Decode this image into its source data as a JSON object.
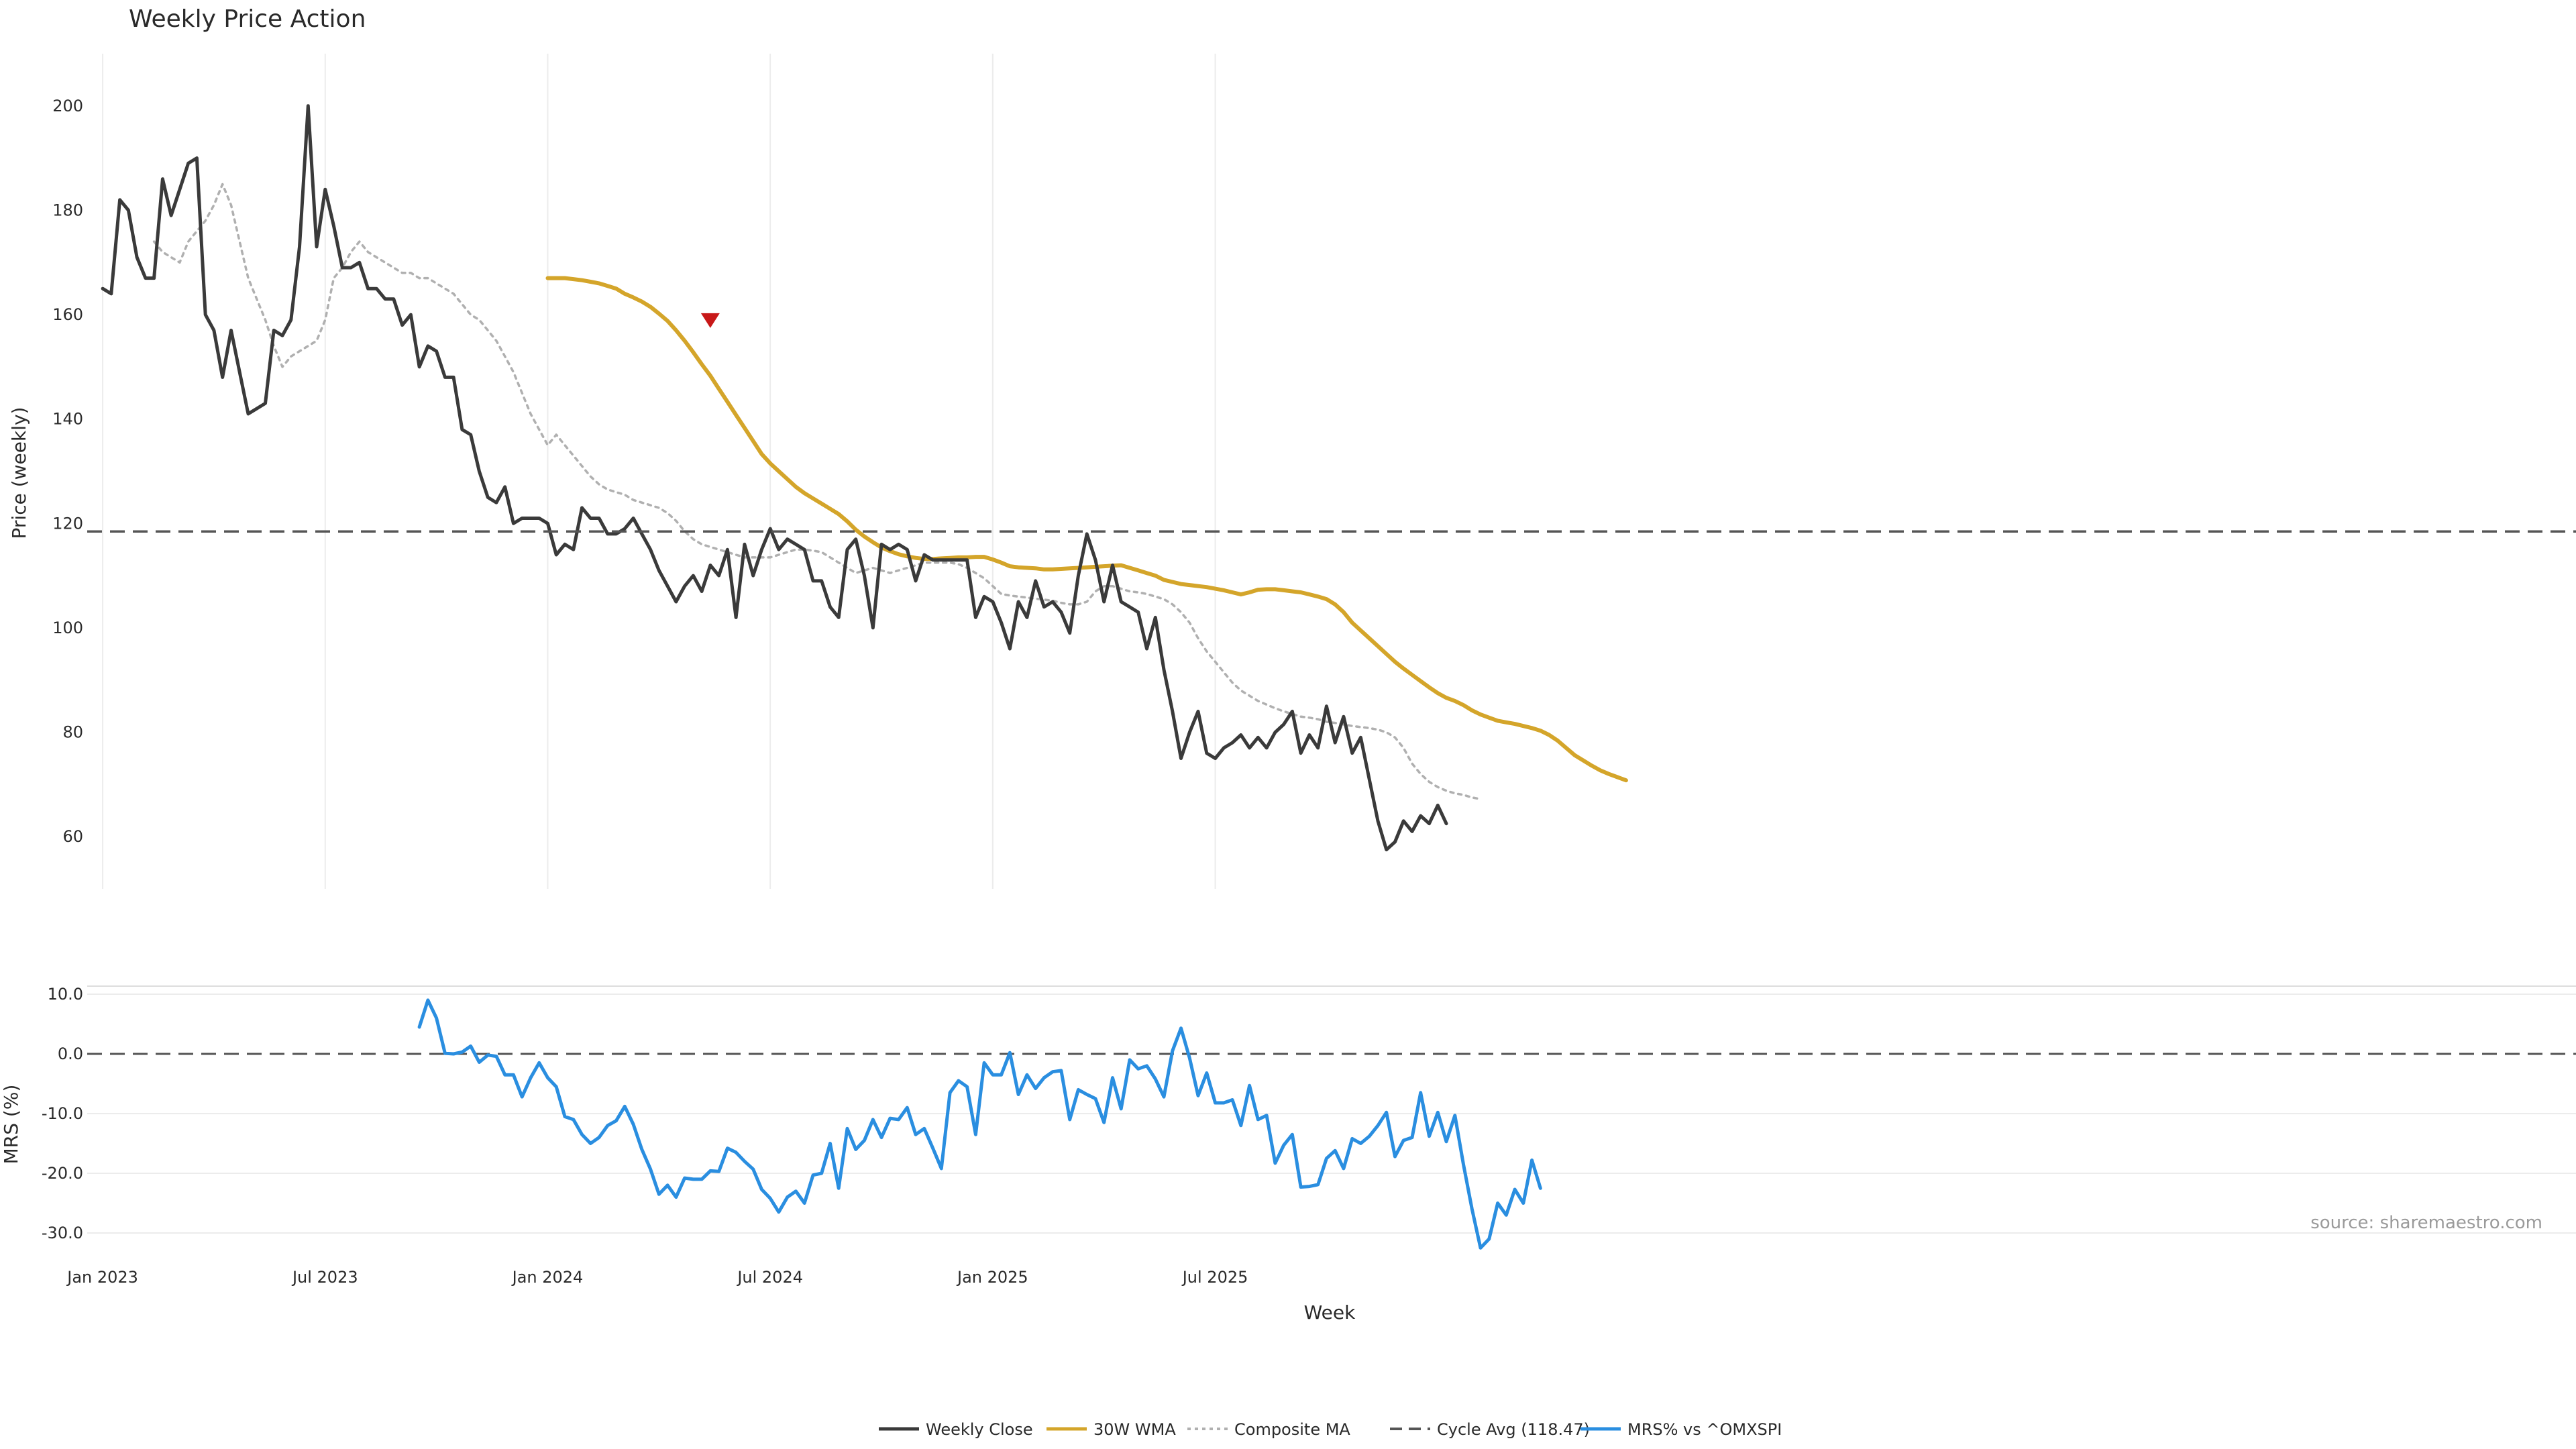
{
  "colors": {
    "close": "#3a3a3a",
    "wma": "#d4a52a",
    "composite": "#b0b0b0",
    "cycle": "#555555",
    "mrs": "#2a8ee0",
    "signal": "#c81818",
    "grid": "#ececec"
  },
  "chart_data": [
    {
      "type": "line",
      "title": "Weekly Price Action",
      "xlabel": "",
      "ylabel": "Price (weekly)",
      "ylim": [
        50,
        210
      ],
      "yticks": [
        "200",
        "180",
        "160",
        "140",
        "120",
        "100",
        "80",
        "60"
      ],
      "x_range": [
        -12,
        289
      ],
      "signal": {
        "name": "Sell signal",
        "x": 71,
        "y": 159
      },
      "series": [
        {
          "name": "Weekly Close",
          "x0": 0,
          "values": [
            165,
            164,
            182,
            180,
            171,
            167,
            167,
            186,
            179,
            184,
            189,
            190,
            160,
            157,
            148,
            157,
            149,
            141,
            142,
            143,
            157,
            156,
            159,
            173,
            200,
            173,
            184,
            177,
            169,
            169,
            170,
            165,
            165,
            163,
            163,
            158,
            160,
            150,
            154,
            153,
            148,
            148,
            138,
            137,
            130,
            125,
            124,
            127,
            120,
            121,
            121,
            121,
            120,
            114,
            116,
            115,
            123,
            121,
            121,
            118,
            118,
            119,
            121,
            118,
            115,
            111,
            108,
            105,
            108,
            110,
            107,
            112,
            110,
            115,
            102,
            116,
            110,
            115,
            119,
            115,
            117,
            116,
            115,
            109,
            109,
            104,
            102,
            115,
            117,
            110,
            100,
            116,
            115,
            116,
            115,
            109,
            114,
            113,
            113,
            113,
            113,
            113,
            102,
            106,
            105,
            101,
            96,
            105,
            102,
            109,
            104,
            105,
            103,
            99,
            110,
            118,
            113,
            105,
            112,
            105,
            104,
            103,
            96,
            102,
            92,
            84,
            75,
            80,
            84,
            76,
            75,
            77,
            78,
            79.5,
            77,
            79,
            77,
            80,
            81.5,
            84,
            76,
            79.5,
            77,
            85,
            78,
            83,
            76,
            79,
            71,
            63,
            57.5,
            59,
            63,
            61,
            64,
            62.5,
            66,
            62.5
          ]
        },
        {
          "name": "30W WMA",
          "x0": 52,
          "values": [
            167,
            167,
            167,
            166.8,
            166.6,
            166.3,
            166,
            165.5,
            165,
            164,
            163.3,
            162.5,
            161.5,
            160.2,
            158.8,
            157,
            155,
            152.8,
            150.5,
            148.3,
            145.8,
            143.3,
            140.8,
            138.3,
            135.8,
            133.3,
            131.5,
            130,
            128.5,
            127,
            125.8,
            124.8,
            123.8,
            122.8,
            121.8,
            120.4,
            118.8,
            117.5,
            116.4,
            115.4,
            114.7,
            114.1,
            113.7,
            113.4,
            113.2,
            113.2,
            113.3,
            113.4,
            113.5,
            113.5,
            113.6,
            113.6,
            113.1,
            112.5,
            111.8,
            111.6,
            111.5,
            111.4,
            111.2,
            111.2,
            111.3,
            111.4,
            111.5,
            111.6,
            111.7,
            111.8,
            111.9,
            112,
            111.5,
            111,
            110.5,
            110,
            109.2,
            108.8,
            108.4,
            108.2,
            108,
            107.8,
            107.5,
            107.2,
            106.8,
            106.4,
            106.8,
            107.3,
            107.4,
            107.4,
            107.2,
            107,
            106.8,
            106.4,
            106,
            105.5,
            104.5,
            103,
            101,
            99.5,
            98,
            96.5,
            95,
            93.5,
            92.2,
            91,
            89.8,
            88.6,
            87.5,
            86.6,
            86,
            85.2,
            84.2,
            83.4,
            82.8,
            82.2,
            81.9,
            81.6,
            81.2,
            80.8,
            80.3,
            79.5,
            78.4,
            77,
            75.6,
            74.6,
            73.6,
            72.7,
            72,
            71.4,
            70.8
          ]
        },
        {
          "name": "Composite MA",
          "x0": 6,
          "values": [
            174,
            172,
            171,
            170,
            174,
            176,
            178,
            181,
            185,
            181,
            174,
            167,
            163,
            159,
            154,
            150,
            152,
            153,
            154,
            155,
            159,
            167,
            169,
            172,
            174,
            172,
            171,
            170,
            169,
            168,
            168,
            167,
            167,
            166,
            165,
            164,
            162,
            160,
            159,
            157,
            155,
            152,
            149,
            145,
            141,
            138,
            135,
            137,
            135,
            133,
            131,
            129,
            127.5,
            126.5,
            126,
            125.5,
            124.5,
            124,
            123.5,
            123,
            122,
            120.5,
            118.5,
            117,
            116,
            115.5,
            115,
            114.5,
            114,
            113.5,
            113.5,
            113.5,
            113.5,
            114,
            114.5,
            115,
            115,
            114.8,
            114.5,
            113.5,
            112.5,
            111.5,
            110.5,
            111,
            111.5,
            111,
            110.5,
            111,
            111.5,
            112,
            112.5,
            112.5,
            112.5,
            112.5,
            112.2,
            111.5,
            110.5,
            109.5,
            108,
            106.5,
            106.2,
            106,
            105.8,
            105.6,
            105.4,
            105.2,
            104.8,
            104.5,
            104.5,
            105,
            107,
            108,
            108,
            107.5,
            107,
            106.8,
            106.5,
            106,
            105.5,
            104.5,
            103,
            101,
            98,
            95.5,
            93.5,
            91.5,
            89.5,
            88,
            87,
            86,
            85.3,
            84.6,
            84,
            83.5,
            83,
            82.8,
            82.5,
            82,
            81.8,
            81.5,
            81.2,
            81,
            80.8,
            80.5,
            80,
            79,
            77,
            74,
            72,
            70.5,
            69.5,
            68.8,
            68.3,
            68,
            67.5,
            67.2
          ]
        },
        {
          "name": "Cycle Avg (118.47)",
          "y": 118.47
        }
      ]
    },
    {
      "type": "line",
      "title": "",
      "xlabel": "Week",
      "ylabel": "MRS (%)",
      "ylim": [
        -33,
        11.5
      ],
      "yticks": [
        "10.0",
        "0.0",
        "-10.0",
        "-20.0",
        "-30.0"
      ],
      "xticks": [
        "Jan 2023",
        "Jul 2023",
        "Jan 2024",
        "Jul 2024",
        "Jan 2025",
        "Jul 2025"
      ],
      "series": [
        {
          "name": "MRS% vs ^OMXSPI",
          "x0": 37,
          "values": [
            4.5,
            9,
            6,
            0.1,
            0,
            0.3,
            1.3,
            -1.4,
            -0.2,
            -0.4,
            -3.5,
            -3.5,
            -7.2,
            -4,
            -1.5,
            -4,
            -5.5,
            -10.5,
            -11,
            -13.5,
            -15,
            -14,
            -12,
            -11.2,
            -8.8,
            -11.8,
            -16,
            -19.3,
            -23.5,
            -22,
            -24,
            -20.8,
            -21,
            -21,
            -19.6,
            -19.7,
            -15.8,
            -16.5,
            -18,
            -19.3,
            -22.7,
            -24.2,
            -26.5,
            -24,
            -23,
            -25,
            -20.3,
            -20,
            -15,
            -22.5,
            -12.5,
            -16,
            -14.5,
            -11,
            -14,
            -10.8,
            -11,
            -9,
            -13.5,
            -12.5,
            -15.8,
            -19.2,
            -6.5,
            -4.5,
            -5.5,
            -13.5,
            -1.5,
            -3.5,
            -3.5,
            0.2,
            -6.8,
            -3.5,
            -5.8,
            -4,
            -3,
            -2.8,
            -11,
            -6,
            -6.8,
            -7.5,
            -11.5,
            -4,
            -9.2,
            -1,
            -2.5,
            -2,
            -4.2,
            -7.2,
            0.5,
            4.3,
            -0.7,
            -7,
            -3.2,
            -8.2,
            -8.2,
            -7.7,
            -12,
            -5.3,
            -11,
            -10.3,
            -18.3,
            -15.3,
            -13.5,
            -22.3,
            -22.2,
            -21.9,
            -17.5,
            -16.2,
            -19.2,
            -14.2,
            -15,
            -13.8,
            -12,
            -9.8,
            -17.2,
            -14.5,
            -14,
            -6.5,
            -13.8,
            -9.8,
            -14.7,
            -10.3,
            -18.5,
            -26,
            -32.5,
            -31,
            -25,
            -27,
            -22.7,
            -25,
            -17.8,
            -22.5
          ]
        }
      ]
    }
  ],
  "zero_line_value": 0,
  "source_text": "source: sharemaestro.com",
  "legend": [
    {
      "label": "Weekly Close",
      "style": "solid",
      "color_key": "close"
    },
    {
      "label": "30W WMA",
      "style": "solid",
      "color_key": "wma"
    },
    {
      "label": "Composite MA",
      "style": "dotted",
      "color_key": "composite"
    },
    {
      "label": "Cycle Avg (118.47)",
      "style": "dashed",
      "color_key": "cycle"
    },
    {
      "label": "MRS% vs ^OMXSPI",
      "style": "solid",
      "color_key": "mrs"
    }
  ]
}
